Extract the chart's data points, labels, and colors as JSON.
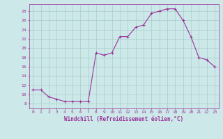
{
  "x": [
    0,
    1,
    2,
    3,
    4,
    5,
    6,
    7,
    8,
    9,
    10,
    11,
    12,
    13,
    14,
    15,
    16,
    17,
    18,
    19,
    20,
    21,
    22,
    23
  ],
  "y": [
    11,
    11,
    9.5,
    9,
    8.5,
    8.5,
    8.5,
    8.5,
    19,
    18.5,
    19,
    22.5,
    22.5,
    24.5,
    25,
    27.5,
    28,
    28.5,
    28.5,
    26,
    22.5,
    18,
    17.5,
    16
  ],
  "line_color": "#993399",
  "marker": "+",
  "bg_color": "#cce8e8",
  "grid_color": "#aacccc",
  "xlabel": "Windchill (Refroidissement éolien,°C)",
  "xlim": [
    -0.5,
    23.5
  ],
  "ylim": [
    7,
    29.5
  ],
  "yticks": [
    8,
    10,
    12,
    14,
    16,
    18,
    20,
    22,
    24,
    26,
    28
  ],
  "xticks": [
    0,
    1,
    2,
    3,
    4,
    5,
    6,
    7,
    8,
    9,
    10,
    11,
    12,
    13,
    14,
    15,
    16,
    17,
    18,
    19,
    20,
    21,
    22,
    23
  ],
  "tick_color": "#993399",
  "label_color": "#993399"
}
